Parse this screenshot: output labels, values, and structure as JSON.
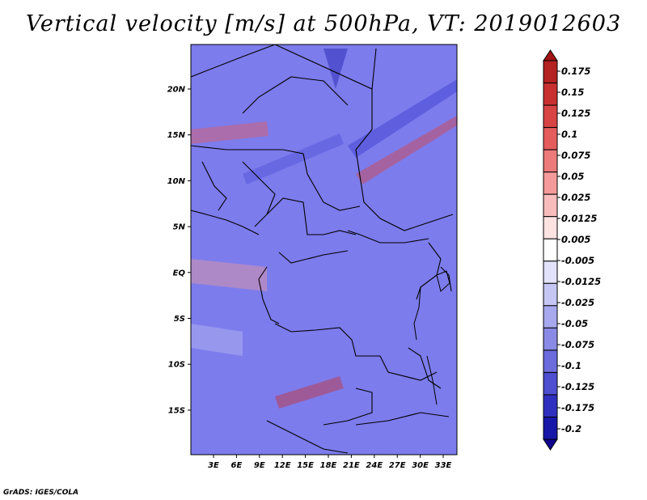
{
  "title": "Vertical velocity [m/s] at 500hPa, VT: 2019012603",
  "footer": "GrADS: IGES/COLA",
  "map": {
    "lat_ticks": [
      "20N",
      "15N",
      "10N",
      "5N",
      "EQ",
      "5S",
      "10S",
      "15S"
    ],
    "lon_ticks": [
      "3E",
      "6E",
      "9E",
      "12E",
      "15E",
      "18E",
      "21E",
      "24E",
      "27E",
      "30E",
      "33E"
    ]
  },
  "colorbar": {
    "labels": [
      "0.175",
      "0.15",
      "0.125",
      "0.1",
      "0.075",
      "0.05",
      "0.025",
      "0.0125",
      "0.005",
      "-0.005",
      "-0.0125",
      "-0.025",
      "-0.05",
      "-0.075",
      "-0.1",
      "-0.125",
      "-0.175",
      "-0.2"
    ],
    "colors": [
      "#a01515",
      "#b52222",
      "#c83030",
      "#d84444",
      "#e45c5c",
      "#ec7a7a",
      "#f49a9a",
      "#f8bcbc",
      "#fde2e2",
      "#ffffff",
      "#e2e2fb",
      "#c6c6f4",
      "#a8a8ee",
      "#8a8ae6",
      "#6c6cdc",
      "#4e4ed0",
      "#3030c0",
      "#1818a8",
      "#100090"
    ]
  }
}
